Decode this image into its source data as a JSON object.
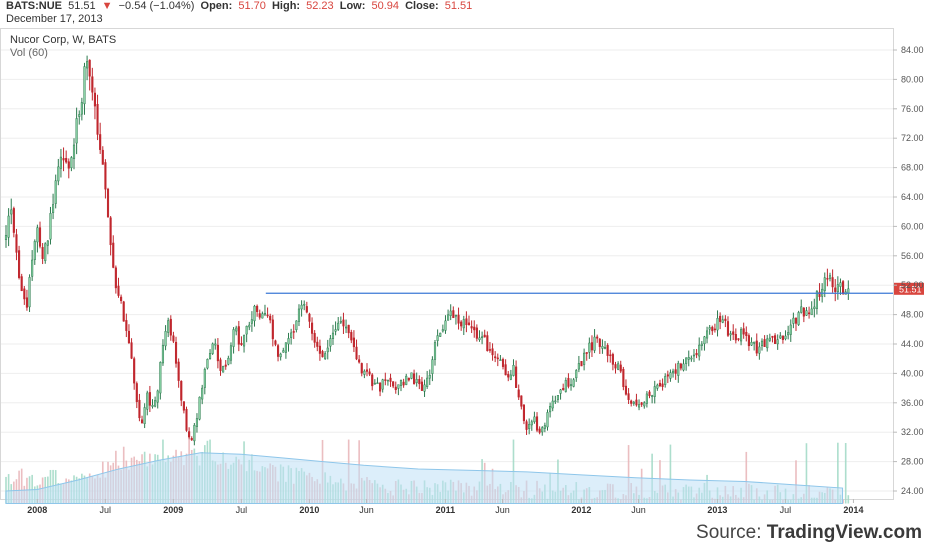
{
  "header": {
    "symbol": "BATS:NUE",
    "price": "51.51",
    "change": "−0.54 (−1.04%)",
    "open_label": "Open:",
    "open": "51.70",
    "high_label": "High:",
    "high": "52.23",
    "low_label": "Low:",
    "low": "50.94",
    "close_label": "Close:",
    "close": "51.51",
    "date": "December 17, 2013"
  },
  "source": {
    "prefix": "Source: ",
    "name": "TradingView.com"
  },
  "colors": {
    "up": "#8ad3a6",
    "down": "#c0262d",
    "up_wick": "#2c7a4e",
    "vol_up": "#9fd8c4",
    "vol_down": "#e8b3b6",
    "vol_ma_fill": "#bfe0f5",
    "vol_ma_line": "#8ec6ea",
    "hline": "#3d7ad6",
    "price_tag": "#d8453e",
    "grid": "#eeeeee"
  },
  "chart_data": {
    "type": "candlestick",
    "title": "Nucor Corp, W, BATS",
    "subtitle": "Vol (60)",
    "yaxis": {
      "range": [
        22,
        86
      ],
      "ticks": [
        "24.00",
        "28.00",
        "32.00",
        "36.00",
        "40.00",
        "44.00",
        "48.00",
        "52.00",
        "56.00",
        "60.00",
        "64.00",
        "68.00",
        "72.00",
        "76.00",
        "80.00",
        "84.00"
      ]
    },
    "xaxis": {
      "ticks": [
        {
          "label": "2008",
          "t": 2008.0,
          "year": true
        },
        {
          "label": "Jul",
          "t": 2008.5,
          "year": false
        },
        {
          "label": "2009",
          "t": 2009.0,
          "year": true
        },
        {
          "label": "Jul",
          "t": 2009.5,
          "year": false
        },
        {
          "label": "2010",
          "t": 2010.0,
          "year": true
        },
        {
          "label": "Jun",
          "t": 2010.42,
          "year": false
        },
        {
          "label": "2011",
          "t": 2011.0,
          "year": true
        },
        {
          "label": "Jun",
          "t": 2011.42,
          "year": false
        },
        {
          "label": "2012",
          "t": 2012.0,
          "year": true
        },
        {
          "label": "Jun",
          "t": 2012.42,
          "year": false
        },
        {
          "label": "2013",
          "t": 2013.0,
          "year": true
        },
        {
          "label": "Jul",
          "t": 2013.5,
          "year": false
        },
        {
          "label": "2014",
          "t": 2014.0,
          "year": true
        }
      ],
      "start": 2007.77,
      "end": 2013.96
    },
    "horizontal_line": {
      "value": 50.9,
      "from": 2009.68,
      "to": 2014.25
    },
    "last_price": {
      "value": 51.51,
      "label": "51.51"
    },
    "price_path": [
      [
        2007.77,
        58.0
      ],
      [
        2007.8,
        63.0
      ],
      [
        2007.84,
        57.0
      ],
      [
        2007.88,
        52.0
      ],
      [
        2007.92,
        48.5
      ],
      [
        2007.96,
        55.0
      ],
      [
        2008.0,
        60.0
      ],
      [
        2008.04,
        55.0
      ],
      [
        2008.08,
        59.0
      ],
      [
        2008.12,
        64.0
      ],
      [
        2008.18,
        70.0
      ],
      [
        2008.24,
        67.0
      ],
      [
        2008.29,
        74.0
      ],
      [
        2008.33,
        78.0
      ],
      [
        2008.36,
        83.0
      ],
      [
        2008.39,
        79.0
      ],
      [
        2008.42,
        76.0
      ],
      [
        2008.45,
        72.0
      ],
      [
        2008.49,
        66.0
      ],
      [
        2008.53,
        60.0
      ],
      [
        2008.57,
        53.0
      ],
      [
        2008.61,
        50.0
      ],
      [
        2008.65,
        46.0
      ],
      [
        2008.69,
        43.0
      ],
      [
        2008.73,
        36.0
      ],
      [
        2008.77,
        33.0
      ],
      [
        2008.81,
        37.0
      ],
      [
        2008.85,
        35.0
      ],
      [
        2008.89,
        38.0
      ],
      [
        2008.92,
        44.0
      ],
      [
        2008.96,
        47.0
      ],
      [
        2009.0,
        44.0
      ],
      [
        2009.05,
        38.0
      ],
      [
        2009.09,
        33.0
      ],
      [
        2009.13,
        31.0
      ],
      [
        2009.17,
        34.0
      ],
      [
        2009.21,
        38.0
      ],
      [
        2009.25,
        42.0
      ],
      [
        2009.3,
        44.0
      ],
      [
        2009.35,
        40.0
      ],
      [
        2009.4,
        42.0
      ],
      [
        2009.45,
        46.0
      ],
      [
        2009.5,
        44.0
      ],
      [
        2009.55,
        47.0
      ],
      [
        2009.6,
        48.5
      ],
      [
        2009.65,
        47.0
      ],
      [
        2009.68,
        49.5
      ],
      [
        2009.72,
        46.0
      ],
      [
        2009.77,
        42.0
      ],
      [
        2009.82,
        44.0
      ],
      [
        2009.87,
        45.5
      ],
      [
        2009.92,
        48.0
      ],
      [
        2009.97,
        50.0
      ],
      [
        2010.02,
        46.0
      ],
      [
        2010.08,
        42.0
      ],
      [
        2010.13,
        44.0
      ],
      [
        2010.18,
        46.0
      ],
      [
        2010.23,
        47.0
      ],
      [
        2010.28,
        45.5
      ],
      [
        2010.34,
        43.0
      ],
      [
        2010.4,
        40.0
      ],
      [
        2010.46,
        39.0
      ],
      [
        2010.52,
        38.0
      ],
      [
        2010.58,
        39.5
      ],
      [
        2010.64,
        38.0
      ],
      [
        2010.7,
        39.0
      ],
      [
        2010.76,
        39.5
      ],
      [
        2010.82,
        38.0
      ],
      [
        2010.88,
        40.0
      ],
      [
        2010.93,
        44.0
      ],
      [
        2010.98,
        46.0
      ],
      [
        2011.03,
        48.0
      ],
      [
        2011.08,
        47.5
      ],
      [
        2011.14,
        47.0
      ],
      [
        2011.2,
        46.0
      ],
      [
        2011.26,
        45.0
      ],
      [
        2011.32,
        43.5
      ],
      [
        2011.38,
        42.0
      ],
      [
        2011.44,
        40.0
      ],
      [
        2011.5,
        40.5
      ],
      [
        2011.55,
        36.0
      ],
      [
        2011.6,
        32.0
      ],
      [
        2011.65,
        34.0
      ],
      [
        2011.7,
        31.5
      ],
      [
        2011.75,
        34.5
      ],
      [
        2011.8,
        36.0
      ],
      [
        2011.86,
        38.0
      ],
      [
        2011.92,
        39.0
      ],
      [
        2011.98,
        41.0
      ],
      [
        2012.04,
        43.0
      ],
      [
        2012.1,
        44.5
      ],
      [
        2012.16,
        44.0
      ],
      [
        2012.22,
        42.0
      ],
      [
        2012.28,
        40.5
      ],
      [
        2012.34,
        37.0
      ],
      [
        2012.4,
        35.0
      ],
      [
        2012.46,
        36.5
      ],
      [
        2012.52,
        37.5
      ],
      [
        2012.58,
        38.5
      ],
      [
        2012.64,
        39.5
      ],
      [
        2012.7,
        40.5
      ],
      [
        2012.76,
        41.5
      ],
      [
        2012.82,
        42.0
      ],
      [
        2012.88,
        44.0
      ],
      [
        2012.94,
        46.0
      ],
      [
        2013.0,
        47.0
      ],
      [
        2013.06,
        46.5
      ],
      [
        2013.12,
        44.5
      ],
      [
        2013.18,
        45.5
      ],
      [
        2013.24,
        44.0
      ],
      [
        2013.3,
        43.0
      ],
      [
        2013.36,
        44.5
      ],
      [
        2013.42,
        44.0
      ],
      [
        2013.48,
        45.0
      ],
      [
        2013.54,
        46.0
      ],
      [
        2013.6,
        48.5
      ],
      [
        2013.66,
        48.0
      ],
      [
        2013.72,
        50.0
      ],
      [
        2013.76,
        51.0
      ],
      [
        2013.8,
        53.5
      ],
      [
        2013.83,
        53.0
      ],
      [
        2013.86,
        52.0
      ],
      [
        2013.89,
        51.5
      ],
      [
        2013.92,
        51.51
      ]
    ],
    "volume_ma_path": [
      [
        2007.77,
        24.0
      ],
      [
        2008.0,
        24.2
      ],
      [
        2008.3,
        25.5
      ],
      [
        2008.6,
        27.0
      ],
      [
        2008.9,
        28.2
      ],
      [
        2009.2,
        29.2
      ],
      [
        2009.5,
        29.0
      ],
      [
        2009.8,
        28.5
      ],
      [
        2010.1,
        28.0
      ],
      [
        2010.4,
        27.5
      ],
      [
        2010.8,
        27.0
      ],
      [
        2011.2,
        26.8
      ],
      [
        2011.6,
        26.6
      ],
      [
        2012.0,
        26.2
      ],
      [
        2012.4,
        25.8
      ],
      [
        2012.8,
        25.5
      ],
      [
        2013.2,
        25.3
      ],
      [
        2013.6,
        24.8
      ],
      [
        2013.92,
        24.4
      ]
    ],
    "volume_baseline": 22.3,
    "volume_peak": 31.0
  }
}
